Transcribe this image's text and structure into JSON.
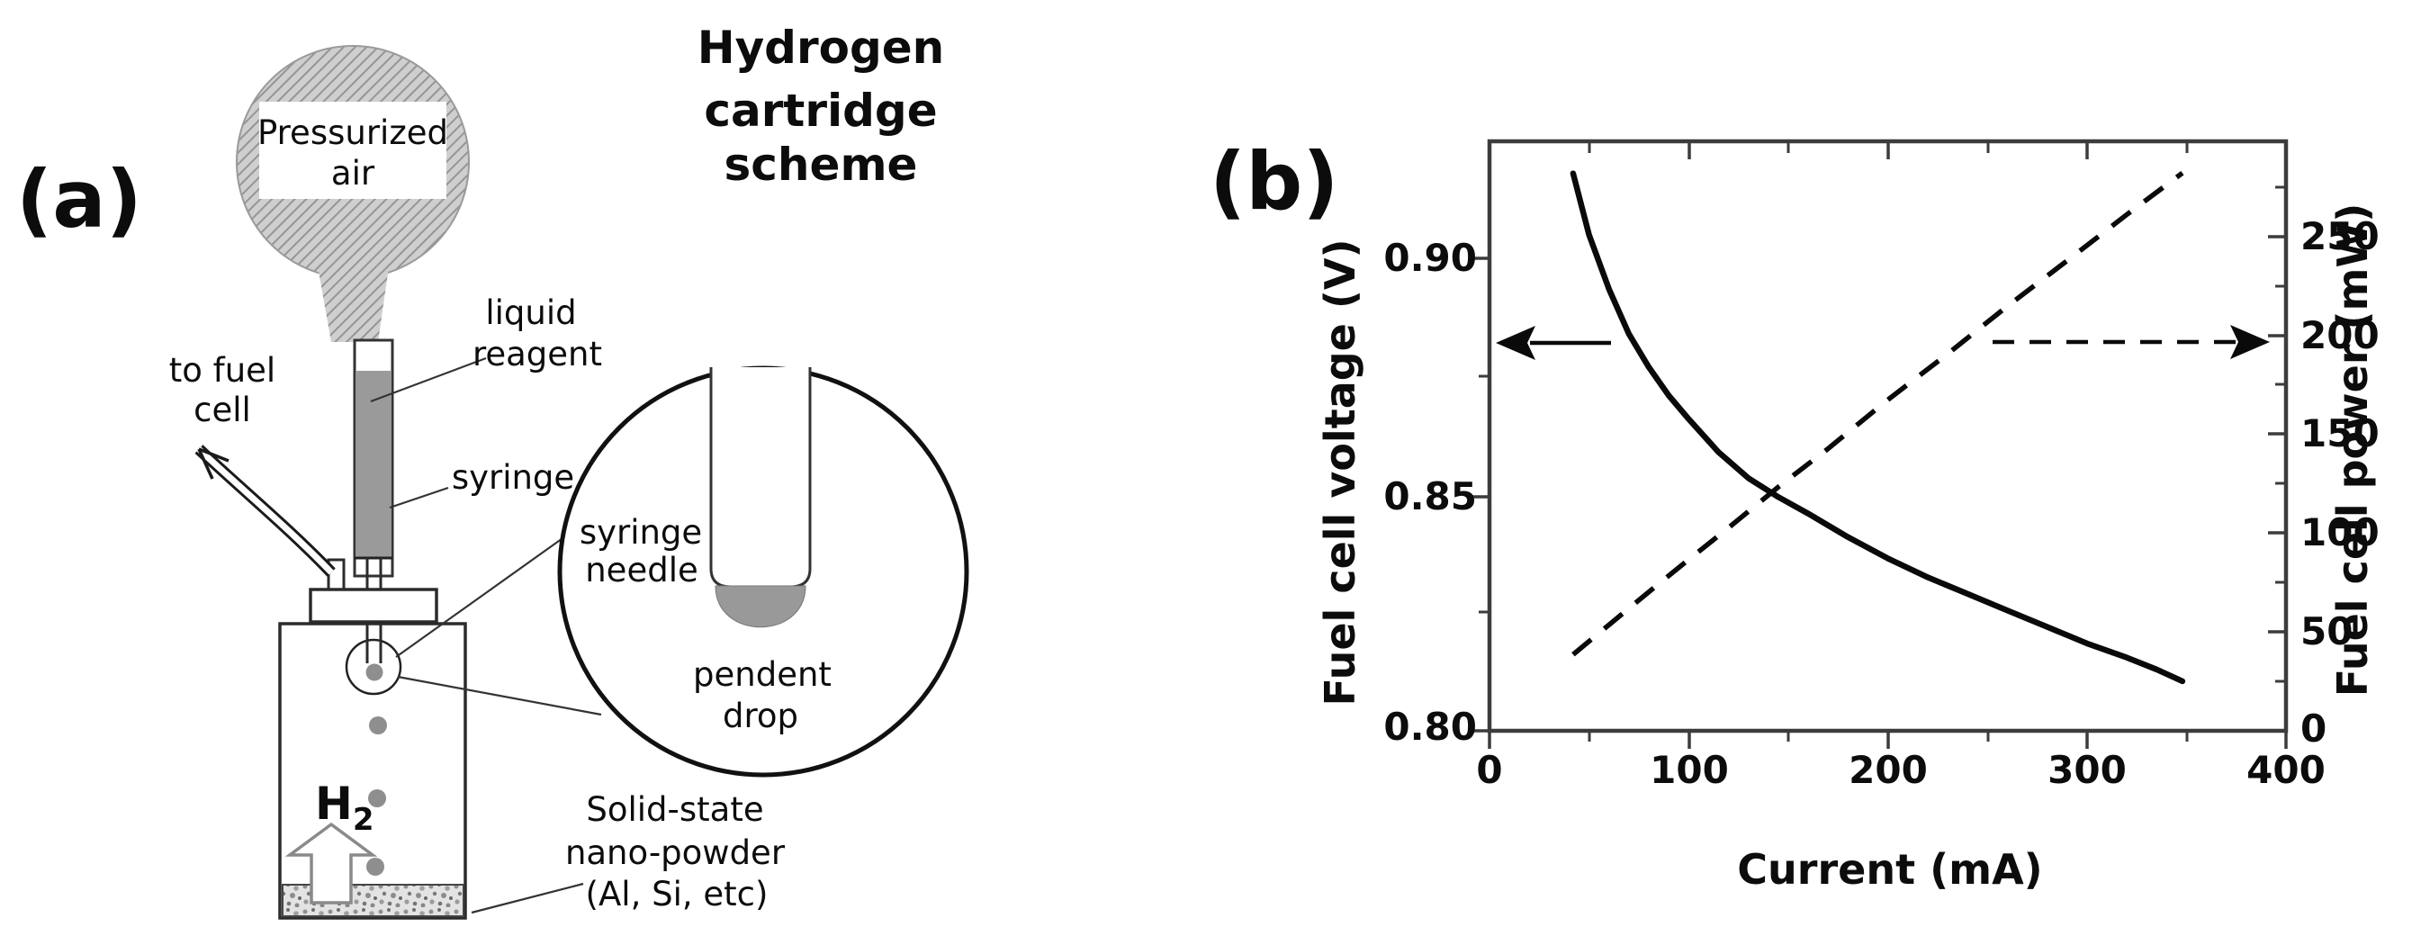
{
  "panel_a": {
    "label": "(a)",
    "title_lines": [
      "Hydrogen",
      "cartridge",
      "scheme"
    ],
    "pressurized_air": [
      "Pressurized",
      "air"
    ],
    "to_fuel_cell": [
      "to fuel",
      "cell"
    ],
    "liquid_reagent": [
      "liquid",
      "reagent"
    ],
    "syringe": "syringe",
    "syringe_needle": [
      "syringe",
      "needle"
    ],
    "pendent_drop": [
      "pendent",
      "drop"
    ],
    "h2": "H",
    "h2_sub": "2",
    "nano_powder": [
      "Solid-state",
      "nano-powder",
      "(Al, Si, etc)"
    ],
    "colors": {
      "liquid_gray": "#9a9a9a",
      "drop_gray": "#999999",
      "hatch_base": "#cfcfcf",
      "hatch_line": "#959595",
      "outline": "#2b2b2b"
    }
  },
  "panel_b": {
    "label": "(b)"
  },
  "chart_data": {
    "type": "line",
    "title": "",
    "xlabel": "Current (mA)",
    "ylabel_left": "Fuel cell voltage (V)",
    "ylabel_right": "Fuel cell power (mW)",
    "xlim": [
      0,
      400
    ],
    "ylim_left": [
      0.8,
      0.9248
    ],
    "ylim_right": [
      0,
      298
    ],
    "grid": false,
    "x_tick_labels": [
      "0",
      "100",
      "200",
      "300",
      "400"
    ],
    "y_left_tick_labels": [
      "0.90",
      "0.85",
      "0.80"
    ],
    "y_right_tick_labels": [
      "250",
      "200",
      "150",
      "100",
      "50",
      "0"
    ],
    "frame_color": "#3c3c3c",
    "curve_color": "#0a0a0a",
    "series": [
      {
        "name": "fuel-cell-voltage",
        "axis": "left",
        "style": "solid",
        "points": [
          [
            42,
            0.918
          ],
          [
            50,
            0.905
          ],
          [
            60,
            0.8935
          ],
          [
            70,
            0.884
          ],
          [
            80,
            0.877
          ],
          [
            90,
            0.871
          ],
          [
            100,
            0.866
          ],
          [
            115,
            0.859
          ],
          [
            130,
            0.8535
          ],
          [
            145,
            0.8495
          ],
          [
            160,
            0.846
          ],
          [
            180,
            0.841
          ],
          [
            200,
            0.8365
          ],
          [
            220,
            0.8325
          ],
          [
            240,
            0.829
          ],
          [
            260,
            0.8255
          ],
          [
            280,
            0.822
          ],
          [
            300,
            0.8185
          ],
          [
            320,
            0.8155
          ],
          [
            335,
            0.813
          ],
          [
            348,
            0.8105
          ]
        ]
      },
      {
        "name": "fuel-cell-power",
        "axis": "right",
        "style": "dashed",
        "points": [
          [
            42,
            38.6
          ],
          [
            60,
            53.6
          ],
          [
            80,
            70.2
          ],
          [
            100,
            86.6
          ],
          [
            120,
            102.6
          ],
          [
            145,
            123.2
          ],
          [
            170,
            142.6
          ],
          [
            200,
            167.3
          ],
          [
            230,
            190.5
          ],
          [
            260,
            214.6
          ],
          [
            290,
            237.6
          ],
          [
            320,
            260.9
          ],
          [
            348,
            282
          ]
        ]
      }
    ]
  }
}
